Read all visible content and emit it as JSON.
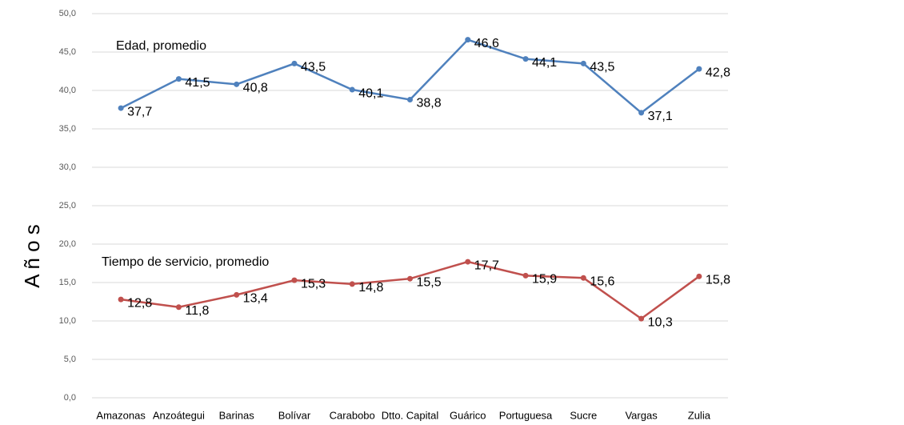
{
  "chart_data": {
    "type": "line",
    "y_label": "A ñ o s",
    "categories": [
      "Amazonas",
      "Anzoátegui",
      "Barinas",
      "Bolívar",
      "Carabobo",
      "Dtto. Capital",
      "Guárico",
      "Portuguesa",
      "Sucre",
      "Vargas",
      "Zulia"
    ],
    "series": [
      {
        "name": "Edad, promedio",
        "color": "#4f81bd",
        "values": [
          37.7,
          41.5,
          40.8,
          43.5,
          40.1,
          38.8,
          46.6,
          44.1,
          43.5,
          37.1,
          42.8
        ],
        "value_labels": [
          "37,7",
          "41,5",
          "40,8",
          "43,5",
          "40,1",
          "38,8",
          "46,6",
          "44,1",
          "43,5",
          "37,1",
          "42,8"
        ]
      },
      {
        "name": "Tiempo de servicio, promedio",
        "color": "#c0504d",
        "values": [
          12.8,
          11.8,
          13.4,
          15.3,
          14.8,
          15.5,
          17.7,
          15.9,
          15.6,
          10.3,
          15.8
        ],
        "value_labels": [
          "12,8",
          "11,8",
          "13,4",
          "15,3",
          "14,8",
          "15,5",
          "17,7",
          "15,9",
          "15,6",
          "10,3",
          "15,8"
        ]
      }
    ],
    "ylim": [
      0,
      50
    ],
    "yticks": [
      {
        "value": 0,
        "label": "0,0"
      },
      {
        "value": 5,
        "label": "5,0"
      },
      {
        "value": 10,
        "label": "10,0"
      },
      {
        "value": 15,
        "label": "15,0"
      },
      {
        "value": 20,
        "label": "20,0"
      },
      {
        "value": 25,
        "label": "25,0"
      },
      {
        "value": 30,
        "label": "30,0"
      },
      {
        "value": 35,
        "label": "35,0"
      },
      {
        "value": 40,
        "label": "40,0"
      },
      {
        "value": 45,
        "label": "45,0"
      },
      {
        "value": 50,
        "label": "50,0"
      }
    ],
    "grid": true
  }
}
